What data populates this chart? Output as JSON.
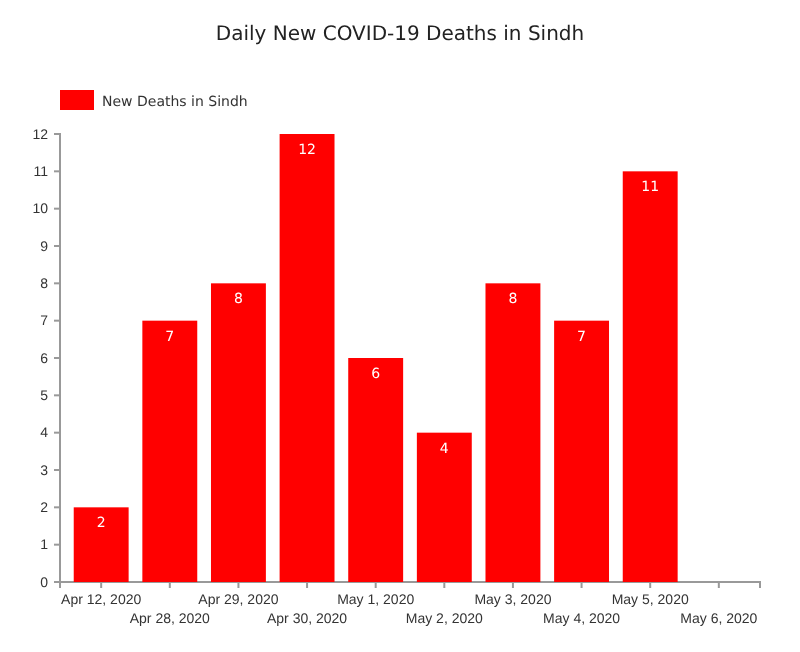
{
  "chart_data": {
    "type": "bar",
    "title": "Daily New COVID-19 Deaths in Sindh",
    "categories": [
      "Apr 12, 2020",
      "Apr 28, 2020",
      "Apr 29, 2020",
      "Apr 30, 2020",
      "May 1, 2020",
      "May 2, 2020",
      "May 3, 2020",
      "May 4, 2020",
      "May 5, 2020",
      "May 6, 2020"
    ],
    "series": [
      {
        "name": "New Deaths in Sindh",
        "color": "#ff0000",
        "values": [
          2,
          7,
          8,
          12,
          6,
          4,
          8,
          7,
          11,
          null
        ]
      }
    ],
    "ylim": [
      0,
      12
    ],
    "yticks": [
      0,
      1,
      2,
      3,
      4,
      5,
      6,
      7,
      8,
      9,
      10,
      11,
      12
    ],
    "data_labels": true,
    "legend": "top left",
    "grid": false
  }
}
